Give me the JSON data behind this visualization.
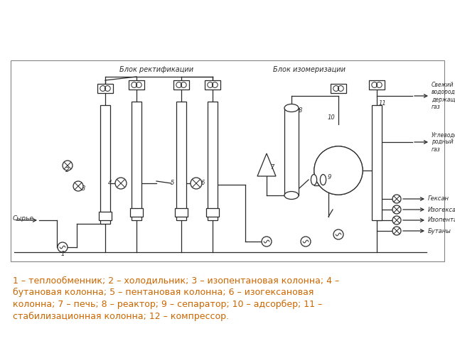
{
  "bg_color": "#ffffff",
  "line_color": "#2a2a2a",
  "caption_color": "#cc6600",
  "label_blok_rekt": "Блок ректификации",
  "label_blok_izom": "Блок изомеризации",
  "label_syryo": "Сырье",
  "label_svezhy": "Свежий\nводородсо-\nдержащий\nгаз",
  "label_uglevod": "Углеводо-\nродный\nгаз",
  "label_geksan": "Гексан",
  "label_izogeksan": "Изогексан",
  "label_izopentan": "Изопентан",
  "label_butany": "Бутаны",
  "caption_lines": [
    "1 – теплообменник; 2 – холодильник; 3 – изопентановая колонна; 4 –",
    "бутановая колонна; 5 – пентановая колонна; 6 – изогексановая",
    "колонна; 7 – печь; 8 – реактор; 9 – сепаратор; 10 – адсорбер; 11 –",
    "стабилизационная колонна; 12 – компрессор."
  ],
  "figsize": [
    6.4,
    4.8
  ],
  "dpi": 100
}
